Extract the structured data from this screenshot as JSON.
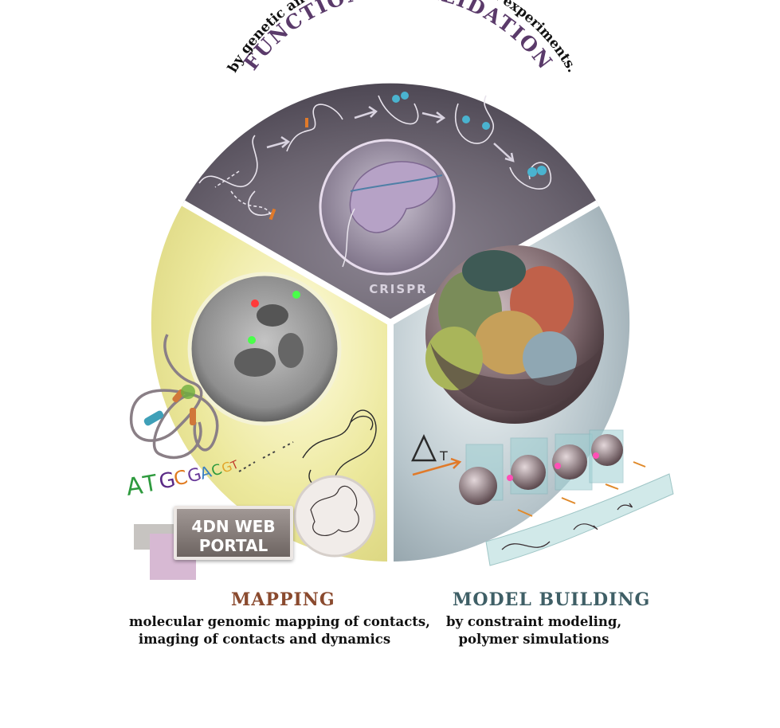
{
  "functional_validation": {
    "title": "FUNCTIONAL VALIDATION",
    "subtitle": "by genetic and biophysical perturbation experiments.",
    "crispr_label": "CRISPR"
  },
  "mapping": {
    "title": "MAPPING",
    "line1": "molecular genomic mapping of contacts,",
    "line2": "imaging of contacts and dynamics",
    "sequence": [
      "A",
      "T",
      "G",
      "C",
      "G",
      "A",
      "C",
      "G",
      "T"
    ],
    "sequence_colors": [
      "#2e9a3e",
      "#2e9a3e",
      "#5a2a86",
      "#e07a1f",
      "#6a3b9a",
      "#3a7fc0",
      "#2e9a3e",
      "#e2a42a",
      "#c0392b"
    ],
    "portal_line1": "4DN WEB",
    "portal_line2": "PORTAL"
  },
  "model_building": {
    "title": "MODEL BUILDING",
    "line1": "by constraint modeling,",
    "line2": "polymer simulations",
    "delta_t": "T"
  },
  "colors": {
    "top_segment": "#56505c",
    "left_segment": "#e6e292",
    "right_segment": "#9fb0b8",
    "title_top": "#5a3a6a",
    "title_mapping": "#8a4a2e",
    "title_model": "#3f5f66"
  }
}
